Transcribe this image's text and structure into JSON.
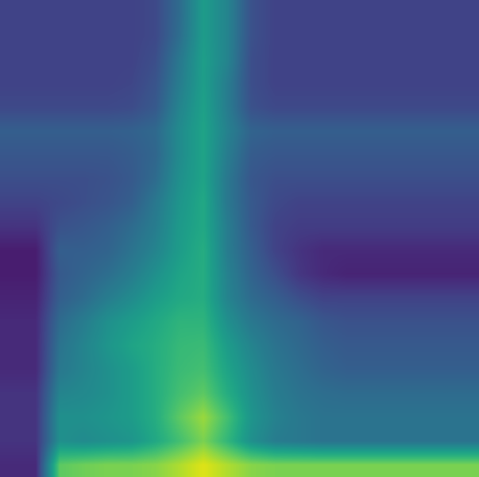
{
  "chart_data": {
    "type": "heatmap",
    "color": "viridis",
    "tick_labels": false,
    "color_range": [
      0,
      1
    ],
    "cells": [
      [
        0.2,
        0.2,
        0.2,
        0.2,
        0.2,
        0.2,
        0.22,
        0.35,
        0.55,
        0.45,
        0.25,
        0.2,
        0.2,
        0.2,
        0.2,
        0.2,
        0.2,
        0.2,
        0.2,
        0.2
      ],
      [
        0.2,
        0.2,
        0.2,
        0.2,
        0.2,
        0.2,
        0.22,
        0.36,
        0.55,
        0.45,
        0.25,
        0.2,
        0.2,
        0.2,
        0.2,
        0.2,
        0.2,
        0.2,
        0.2,
        0.2
      ],
      [
        0.2,
        0.2,
        0.2,
        0.2,
        0.2,
        0.2,
        0.24,
        0.4,
        0.56,
        0.45,
        0.24,
        0.2,
        0.2,
        0.2,
        0.2,
        0.2,
        0.2,
        0.2,
        0.2,
        0.2
      ],
      [
        0.2,
        0.2,
        0.2,
        0.2,
        0.2,
        0.21,
        0.26,
        0.42,
        0.56,
        0.42,
        0.24,
        0.2,
        0.2,
        0.2,
        0.2,
        0.2,
        0.2,
        0.2,
        0.2,
        0.2
      ],
      [
        0.22,
        0.22,
        0.22,
        0.22,
        0.22,
        0.23,
        0.28,
        0.45,
        0.57,
        0.42,
        0.25,
        0.22,
        0.22,
        0.22,
        0.22,
        0.22,
        0.22,
        0.22,
        0.22,
        0.22
      ],
      [
        0.3,
        0.3,
        0.3,
        0.3,
        0.3,
        0.31,
        0.34,
        0.48,
        0.58,
        0.44,
        0.32,
        0.3,
        0.3,
        0.3,
        0.3,
        0.3,
        0.3,
        0.3,
        0.3,
        0.3
      ],
      [
        0.27,
        0.27,
        0.27,
        0.27,
        0.27,
        0.29,
        0.33,
        0.48,
        0.58,
        0.42,
        0.29,
        0.27,
        0.27,
        0.27,
        0.27,
        0.27,
        0.27,
        0.27,
        0.27,
        0.27
      ],
      [
        0.24,
        0.24,
        0.24,
        0.24,
        0.25,
        0.28,
        0.35,
        0.5,
        0.58,
        0.4,
        0.27,
        0.24,
        0.24,
        0.24,
        0.24,
        0.24,
        0.24,
        0.24,
        0.24,
        0.24
      ],
      [
        0.2,
        0.2,
        0.22,
        0.24,
        0.26,
        0.3,
        0.4,
        0.52,
        0.6,
        0.4,
        0.28,
        0.22,
        0.2,
        0.2,
        0.2,
        0.2,
        0.2,
        0.2,
        0.2,
        0.2
      ],
      [
        0.15,
        0.15,
        0.25,
        0.27,
        0.3,
        0.35,
        0.42,
        0.54,
        0.6,
        0.42,
        0.28,
        0.2,
        0.18,
        0.18,
        0.18,
        0.18,
        0.18,
        0.18,
        0.18,
        0.18
      ],
      [
        0.08,
        0.08,
        0.3,
        0.3,
        0.32,
        0.38,
        0.45,
        0.55,
        0.62,
        0.42,
        0.3,
        0.2,
        0.15,
        0.12,
        0.12,
        0.12,
        0.12,
        0.12,
        0.12,
        0.12
      ],
      [
        0.08,
        0.08,
        0.28,
        0.32,
        0.36,
        0.42,
        0.5,
        0.58,
        0.62,
        0.44,
        0.32,
        0.24,
        0.16,
        0.12,
        0.1,
        0.1,
        0.1,
        0.1,
        0.1,
        0.1
      ],
      [
        0.1,
        0.1,
        0.3,
        0.35,
        0.42,
        0.48,
        0.55,
        0.6,
        0.62,
        0.45,
        0.35,
        0.3,
        0.24,
        0.2,
        0.2,
        0.2,
        0.2,
        0.2,
        0.2,
        0.2
      ],
      [
        0.12,
        0.12,
        0.35,
        0.42,
        0.5,
        0.55,
        0.6,
        0.65,
        0.65,
        0.5,
        0.4,
        0.35,
        0.32,
        0.27,
        0.25,
        0.25,
        0.25,
        0.25,
        0.25,
        0.25
      ],
      [
        0.12,
        0.12,
        0.38,
        0.45,
        0.52,
        0.58,
        0.62,
        0.67,
        0.68,
        0.55,
        0.45,
        0.38,
        0.34,
        0.3,
        0.28,
        0.28,
        0.28,
        0.28,
        0.28,
        0.28
      ],
      [
        0.12,
        0.12,
        0.4,
        0.45,
        0.5,
        0.55,
        0.62,
        0.68,
        0.7,
        0.58,
        0.48,
        0.4,
        0.36,
        0.32,
        0.3,
        0.3,
        0.3,
        0.3,
        0.3,
        0.3
      ],
      [
        0.15,
        0.15,
        0.45,
        0.47,
        0.5,
        0.55,
        0.62,
        0.7,
        0.75,
        0.62,
        0.5,
        0.42,
        0.38,
        0.36,
        0.35,
        0.35,
        0.35,
        0.35,
        0.35,
        0.35
      ],
      [
        0.15,
        0.15,
        0.5,
        0.5,
        0.52,
        0.55,
        0.62,
        0.75,
        0.85,
        0.7,
        0.52,
        0.44,
        0.4,
        0.38,
        0.38,
        0.38,
        0.38,
        0.38,
        0.38,
        0.38
      ],
      [
        0.15,
        0.15,
        0.5,
        0.48,
        0.5,
        0.52,
        0.6,
        0.7,
        0.8,
        0.66,
        0.5,
        0.42,
        0.4,
        0.38,
        0.38,
        0.38,
        0.38,
        0.38,
        0.38,
        0.38
      ],
      [
        0.12,
        0.12,
        0.75,
        0.78,
        0.8,
        0.8,
        0.82,
        0.88,
        0.95,
        0.88,
        0.82,
        0.8,
        0.8,
        0.8,
        0.8,
        0.8,
        0.8,
        0.8,
        0.8,
        0.8
      ]
    ]
  }
}
